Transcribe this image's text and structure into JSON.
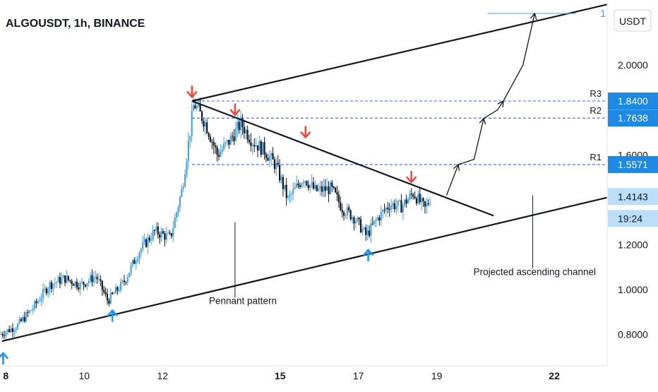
{
  "header": {
    "title": "ALGOUSDT, 1h, BINANCE"
  },
  "currency_button": {
    "label": "USDT"
  },
  "scale_marker": "1",
  "chart_data": {
    "type": "candlestick",
    "title": "ALGOUSDT, 1h, BINANCE",
    "y_axis": {
      "ticks": [
        "2.0000",
        "1.6000",
        "1.2000",
        "1.0000",
        "0.8000"
      ],
      "tick_values": [
        2.0,
        1.6,
        1.2,
        1.0,
        0.8
      ],
      "range": [
        0.66,
        2.29
      ]
    },
    "x_axis": {
      "ticks": [
        {
          "label": "8",
          "value": 8,
          "bold": true
        },
        {
          "label": "10",
          "value": 10,
          "bold": false
        },
        {
          "label": "12",
          "value": 12,
          "bold": false
        },
        {
          "label": "15",
          "value": 15,
          "bold": true
        },
        {
          "label": "17",
          "value": 17,
          "bold": false
        },
        {
          "label": "19",
          "value": 19,
          "bold": false
        },
        {
          "label": "22",
          "value": 22,
          "bold": true
        }
      ],
      "range": [
        7.85,
        23.35
      ]
    },
    "price_path": [
      [
        7.85,
        0.8
      ],
      [
        8.3,
        0.84
      ],
      [
        8.7,
        0.92
      ],
      [
        9.1,
        1.02
      ],
      [
        9.5,
        1.05
      ],
      [
        9.9,
        1.02
      ],
      [
        10.3,
        1.06
      ],
      [
        10.6,
        0.95
      ],
      [
        11.0,
        1.03
      ],
      [
        11.4,
        1.17
      ],
      [
        11.8,
        1.26
      ],
      [
        12.2,
        1.23
      ],
      [
        12.5,
        1.45
      ],
      [
        12.8,
        1.83
      ],
      [
        13.1,
        1.74
      ],
      [
        13.4,
        1.6
      ],
      [
        13.7,
        1.66
      ],
      [
        14.0,
        1.74
      ],
      [
        14.3,
        1.66
      ],
      [
        14.6,
        1.62
      ],
      [
        14.9,
        1.55
      ],
      [
        15.2,
        1.4
      ],
      [
        15.6,
        1.5
      ],
      [
        15.9,
        1.44
      ],
      [
        16.3,
        1.45
      ],
      [
        16.6,
        1.36
      ],
      [
        16.9,
        1.32
      ],
      [
        17.2,
        1.24
      ],
      [
        17.5,
        1.32
      ],
      [
        17.8,
        1.38
      ],
      [
        18.1,
        1.37
      ],
      [
        18.4,
        1.43
      ],
      [
        18.7,
        1.36
      ],
      [
        18.85,
        1.41
      ]
    ],
    "price_levels": [
      {
        "label": "R3",
        "value": 1.84,
        "badge": "1.8400"
      },
      {
        "label": "R2",
        "value": 1.7638,
        "badge": "1.7638"
      },
      {
        "label": "R1",
        "value": 1.5571,
        "badge": "1.5571"
      }
    ],
    "last_price": "1.4143",
    "countdown": "19:24",
    "trendlines": [
      {
        "name": "upper-channel",
        "from": [
          12.75,
          1.84
        ],
        "to": [
          23.35,
          2.27
        ]
      },
      {
        "name": "pennant-upper",
        "from": [
          12.75,
          1.84
        ],
        "to": [
          20.45,
          1.329
        ]
      },
      {
        "name": "ascending-support",
        "from": [
          7.9,
          0.77
        ],
        "to": [
          23.35,
          1.41
        ]
      },
      {
        "name": "target-line",
        "from": [
          20.3,
          2.23
        ],
        "to": [
          22.55,
          2.23
        ]
      }
    ],
    "projection_path": [
      [
        19.25,
        1.42
      ],
      [
        19.55,
        1.557
      ],
      [
        19.95,
        1.58
      ],
      [
        20.2,
        1.763
      ],
      [
        20.55,
        1.8
      ],
      [
        20.7,
        1.84
      ],
      [
        21.2,
        2.0
      ],
      [
        21.5,
        2.23
      ]
    ],
    "down_arrows": [
      [
        12.75,
        1.88
      ],
      [
        13.85,
        1.8
      ],
      [
        15.65,
        1.7
      ],
      [
        18.35,
        1.5
      ]
    ],
    "up_arrows": [
      [
        7.93,
        0.695
      ],
      [
        10.72,
        0.885
      ],
      [
        17.25,
        1.155
      ]
    ],
    "annotations": [
      {
        "text": "Pennant pattern",
        "x": 14.05,
        "y": 0.935,
        "line_from": [
          13.85,
          1.3
        ],
        "line_to": [
          13.85,
          0.965
        ]
      },
      {
        "text": "Projected ascending channel",
        "x": 21.5,
        "y": 1.065,
        "line_from": [
          21.45,
          1.42
        ],
        "line_to": [
          21.45,
          1.095
        ]
      }
    ]
  },
  "colors": {
    "up": "#4aa3df",
    "down": "#131722",
    "level_line": "#2962ff",
    "badge_bg": "#1e88e5",
    "last_price_bg": "#bbdefb",
    "red_arrow": "#e74c3c",
    "blue_arrow": "#2196f3",
    "target_line": "#5aa7e6"
  }
}
